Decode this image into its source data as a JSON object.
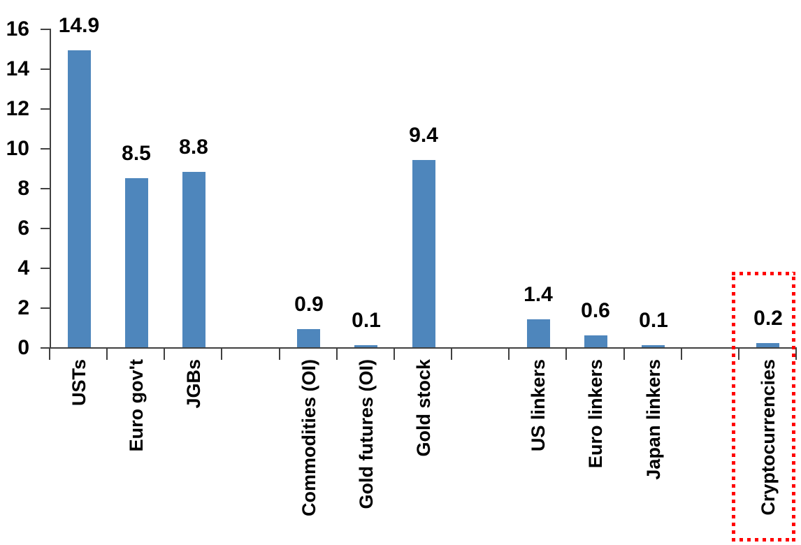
{
  "chart_data": {
    "type": "bar",
    "title": "",
    "xlabel": "",
    "ylabel": "",
    "categories": [
      "USTs",
      "Euro gov't",
      "JGBs",
      "",
      "Commodities (OI)",
      "Gold futures (OI)",
      "Gold stock",
      "",
      "US linkers",
      "Euro linkers",
      "Japan linkers",
      "",
      "Cryptocurrencies"
    ],
    "values": [
      14.9,
      8.5,
      8.8,
      null,
      0.9,
      0.1,
      9.4,
      null,
      1.4,
      0.6,
      0.1,
      null,
      0.2
    ],
    "bar_labels": [
      "14.9",
      "8.5",
      "8.8",
      null,
      "0.9",
      "0.1",
      "9.4",
      null,
      "1.4",
      "0.6",
      "0.1",
      null,
      "0.2"
    ],
    "ylim": [
      0,
      16
    ],
    "yticks": [
      0,
      2,
      4,
      6,
      8,
      10,
      12,
      14,
      16
    ],
    "grid": false,
    "legend": null,
    "bar_color": "#4E86BC",
    "axis_color": "#404040",
    "text_color": "#000000",
    "highlight": {
      "category": "Cryptocurrencies",
      "slot_index": 12,
      "style": "red-dotted-box",
      "color": "#FF0000"
    }
  }
}
